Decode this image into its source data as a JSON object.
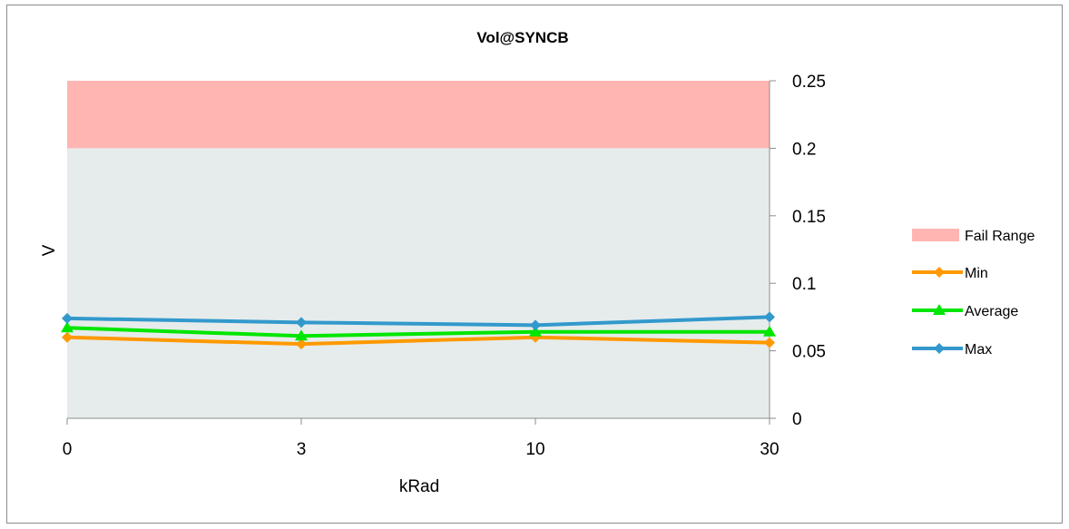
{
  "chart_data": {
    "type": "line",
    "title": "Vol@SYNCB",
    "xlabel": "kRad",
    "ylabel": "V",
    "categories": [
      "0",
      "3",
      "10",
      "30"
    ],
    "ylim": [
      0,
      0.25
    ],
    "yticks": [
      "0",
      "0.05",
      "0.1",
      "0.15",
      "0.2",
      "0.25"
    ],
    "fail_range": {
      "name": "Fail Range",
      "from": 0.2,
      "to": 0.25,
      "color": "#ffb6b3"
    },
    "pass_region_color": "#e6ecec",
    "y_axis_position": "right",
    "legend_position": "right",
    "grid": false,
    "series": [
      {
        "name": "Min",
        "values": [
          0.06,
          0.055,
          0.06,
          0.056
        ],
        "color": "#ff9900",
        "marker": "diamond"
      },
      {
        "name": "Average",
        "values": [
          0.067,
          0.061,
          0.064,
          0.064
        ],
        "color": "#00e600",
        "marker": "triangle"
      },
      {
        "name": "Max",
        "values": [
          0.074,
          0.071,
          0.069,
          0.075
        ],
        "color": "#3399cc",
        "marker": "diamond"
      }
    ]
  }
}
